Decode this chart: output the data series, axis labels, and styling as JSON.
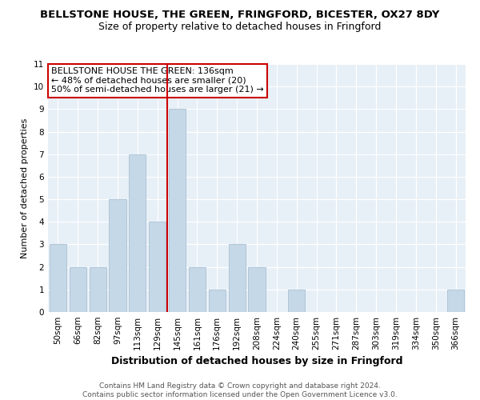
{
  "title": "BELLSTONE HOUSE, THE GREEN, FRINGFORD, BICESTER, OX27 8DY",
  "subtitle": "Size of property relative to detached houses in Fringford",
  "xlabel": "Distribution of detached houses by size in Fringford",
  "ylabel": "Number of detached properties",
  "bar_labels": [
    "50sqm",
    "66sqm",
    "82sqm",
    "97sqm",
    "113sqm",
    "129sqm",
    "145sqm",
    "161sqm",
    "176sqm",
    "192sqm",
    "208sqm",
    "224sqm",
    "240sqm",
    "255sqm",
    "271sqm",
    "287sqm",
    "303sqm",
    "319sqm",
    "334sqm",
    "350sqm",
    "366sqm"
  ],
  "bar_values": [
    3,
    2,
    2,
    5,
    7,
    4,
    9,
    2,
    1,
    3,
    2,
    0,
    1,
    0,
    0,
    0,
    0,
    0,
    0,
    0,
    1
  ],
  "bar_color": "#c5d8e8",
  "bar_edgecolor": "#a0b8cc",
  "vline_x": 6,
  "vline_color": "#cc0000",
  "ylim": [
    0,
    11
  ],
  "yticks": [
    0,
    1,
    2,
    3,
    4,
    5,
    6,
    7,
    8,
    9,
    10,
    11
  ],
  "annotation_text": "BELLSTONE HOUSE THE GREEN: 136sqm\n← 48% of detached houses are smaller (20)\n50% of semi-detached houses are larger (21) →",
  "annotation_box_color": "#ffffff",
  "annotation_box_edgecolor": "#cc0000",
  "footer_text": "Contains HM Land Registry data © Crown copyright and database right 2024.\nContains public sector information licensed under the Open Government Licence v3.0.",
  "background_color": "#e8f0f7",
  "grid_color": "#ffffff",
  "title_fontsize": 9.5,
  "subtitle_fontsize": 9,
  "ylabel_fontsize": 8,
  "xlabel_fontsize": 9,
  "tick_fontsize": 7.5,
  "annotation_fontsize": 8
}
